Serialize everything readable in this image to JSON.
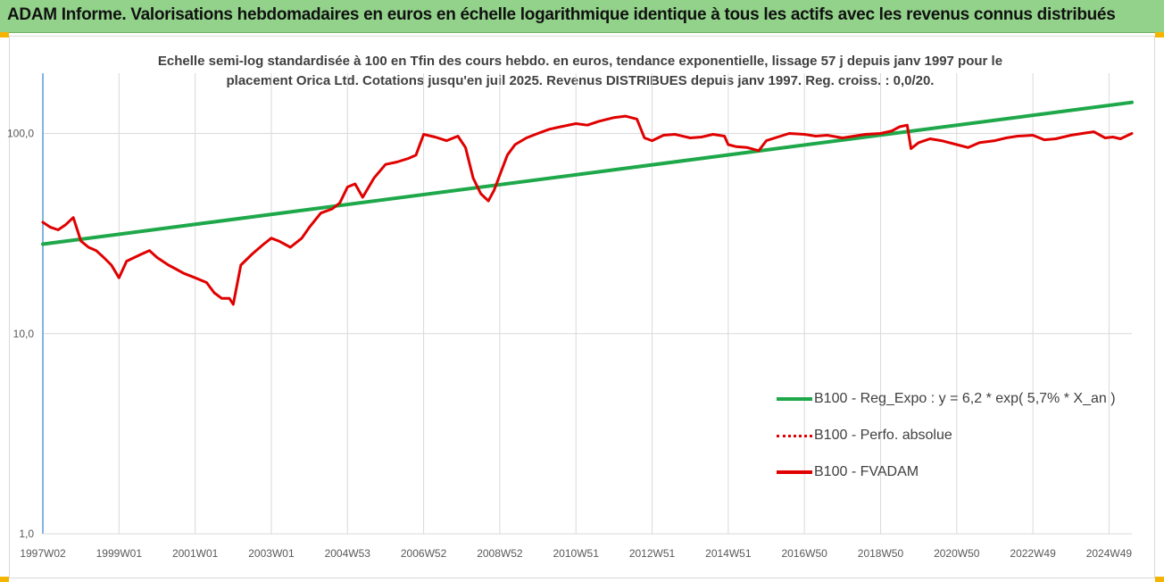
{
  "page": {
    "title": "ADAM Informe. Valorisations hebdomadaires en euros en échelle logarithmique identique à tous les actifs avec les revenus connus distribués",
    "subtitle_line1": "Echelle semi-log standardisée à 100 en Tfin des cours hebdo. en euros, tendance exponentielle, lissage 57 j depuis janv 1997 pour le",
    "subtitle_line2": "placement Orica Ltd. Cotations jusqu'en juil 2025. Revenus DISTRIBUES depuis janv 1997. Reg. croiss. : 0,0/20."
  },
  "colors": {
    "banner": "#92d28a",
    "regression": "#1ea84a",
    "series": "#e00000",
    "grid": "#d9d9d9",
    "axis": "#5b9bd5",
    "corner": "#f5b400"
  },
  "chart_data": {
    "type": "line",
    "yscale": "log",
    "ylim": [
      1,
      200
    ],
    "y_ticks": [
      {
        "value": 1,
        "label": "1,0"
      },
      {
        "value": 10,
        "label": "10,0"
      },
      {
        "value": 100,
        "label": "100,0"
      }
    ],
    "xlim": [
      1997.0,
      2025.6
    ],
    "x_ticks": [
      {
        "value": 1997.0,
        "label": "1997W02"
      },
      {
        "value": 1999.0,
        "label": "1999W01"
      },
      {
        "value": 2001.0,
        "label": "2001W01"
      },
      {
        "value": 2003.0,
        "label": "2003W01"
      },
      {
        "value": 2005.0,
        "label": "2004W53"
      },
      {
        "value": 2007.0,
        "label": "2006W52"
      },
      {
        "value": 2009.0,
        "label": "2008W52"
      },
      {
        "value": 2011.0,
        "label": "2010W51"
      },
      {
        "value": 2013.0,
        "label": "2012W51"
      },
      {
        "value": 2015.0,
        "label": "2014W51"
      },
      {
        "value": 2017.0,
        "label": "2016W50"
      },
      {
        "value": 2019.0,
        "label": "2018W50"
      },
      {
        "value": 2021.0,
        "label": "2020W50"
      },
      {
        "value": 2023.0,
        "label": "2022W49"
      },
      {
        "value": 2025.0,
        "label": "2024W49"
      }
    ],
    "legend": {
      "position": "bottom-right",
      "entries": [
        {
          "label": "B100 - Reg_Expo : y = 6,2 * exp( 5,7% *  X_an )",
          "style": "solid",
          "color": "#1ea84a"
        },
        {
          "label": "B100 - Perfo. absolue",
          "style": "dotted",
          "color": "#e00000"
        },
        {
          "label": "B100 - FVADAM",
          "style": "solid",
          "color": "#e00000"
        }
      ]
    },
    "series": [
      {
        "name": "B100 - Reg_Expo : y = 6,2 * exp( 5,7% *  X_an )",
        "kind": "regression",
        "x": [
          1997.0,
          2025.6
        ],
        "y": [
          28,
          143
        ]
      },
      {
        "name": "B100 - FVADAM",
        "kind": "line",
        "x": [
          1997.0,
          1997.2,
          1997.4,
          1997.6,
          1997.8,
          1998.0,
          1998.2,
          1998.4,
          1998.6,
          1998.8,
          1999.0,
          1999.2,
          1999.4,
          1999.6,
          1999.8,
          2000.0,
          2000.3,
          2000.5,
          2000.7,
          2001.0,
          2001.3,
          2001.5,
          2001.7,
          2001.9,
          2002.0,
          2002.2,
          2002.5,
          2002.8,
          2003.0,
          2003.2,
          2003.5,
          2003.8,
          2004.0,
          2004.3,
          2004.6,
          2004.8,
          2005.0,
          2005.2,
          2005.4,
          2005.7,
          2006.0,
          2006.3,
          2006.6,
          2006.8,
          2007.0,
          2007.3,
          2007.6,
          2007.9,
          2008.1,
          2008.3,
          2008.5,
          2008.7,
          2008.85,
          2009.0,
          2009.2,
          2009.4,
          2009.7,
          2010.0,
          2010.3,
          2010.6,
          2011.0,
          2011.3,
          2011.6,
          2012.0,
          2012.3,
          2012.6,
          2012.8,
          2013.0,
          2013.3,
          2013.6,
          2014.0,
          2014.3,
          2014.6,
          2014.9,
          2015.0,
          2015.2,
          2015.5,
          2015.8,
          2016.0,
          2016.3,
          2016.6,
          2017.0,
          2017.3,
          2017.6,
          2018.0,
          2018.3,
          2018.6,
          2019.0,
          2019.3,
          2019.5,
          2019.7,
          2019.8,
          2020.0,
          2020.3,
          2020.6,
          2021.0,
          2021.3,
          2021.6,
          2022.0,
          2022.3,
          2022.6,
          2023.0,
          2023.3,
          2023.6,
          2024.0,
          2024.3,
          2024.6,
          2024.9,
          2025.1,
          2025.3,
          2025.6
        ],
        "y": [
          36,
          34,
          33,
          35,
          38,
          29,
          27,
          26,
          24,
          22,
          19,
          23,
          24,
          25,
          26,
          24,
          22,
          21,
          20,
          19,
          18,
          16,
          15,
          15,
          14,
          22,
          25,
          28,
          30,
          29,
          27,
          30,
          34,
          40,
          42,
          45,
          54,
          56,
          48,
          60,
          70,
          72,
          75,
          78,
          99,
          96,
          92,
          97,
          85,
          60,
          50,
          46,
          52,
          62,
          78,
          88,
          95,
          100,
          105,
          108,
          112,
          110,
          115,
          120,
          122,
          118,
          95,
          92,
          98,
          99,
          95,
          96,
          99,
          97,
          88,
          86,
          85,
          82,
          92,
          96,
          100,
          99,
          97,
          98,
          95,
          97,
          99,
          100,
          103,
          108,
          110,
          84,
          90,
          94,
          92,
          88,
          85,
          90,
          92,
          95,
          97,
          98,
          93,
          94,
          98,
          100,
          102,
          95,
          96,
          94,
          100
        ]
      }
    ]
  }
}
